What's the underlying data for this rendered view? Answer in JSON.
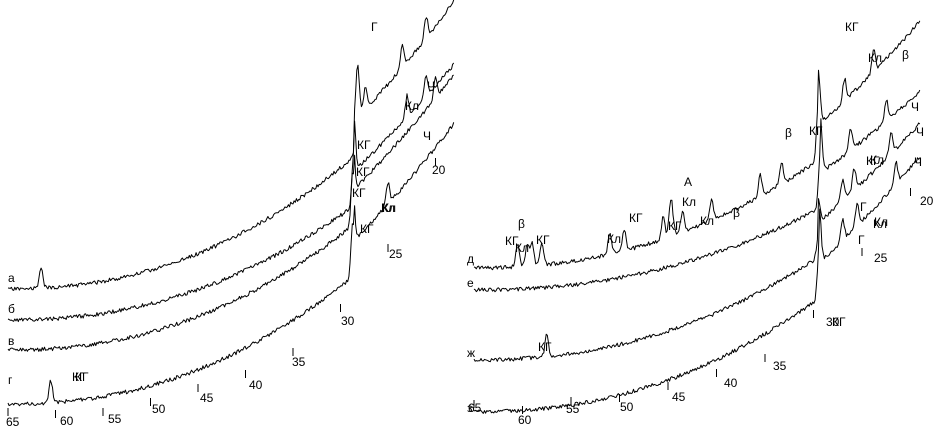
{
  "chart_data": [
    {
      "type": "line",
      "panel": "left",
      "xlim": [
        65,
        18
      ],
      "ticks": [
        {
          "label": "65",
          "x": 65
        },
        {
          "label": "60",
          "x": 60
        },
        {
          "label": "55",
          "x": 55
        },
        {
          "label": "50",
          "x": 50
        },
        {
          "label": "45",
          "x": 45
        },
        {
          "label": "40",
          "x": 40
        },
        {
          "label": "35",
          "x": 35
        },
        {
          "label": "30",
          "x": 30
        },
        {
          "label": "25",
          "x": 25
        },
        {
          "label": "20",
          "x": 20
        }
      ],
      "series": [
        {
          "name": "а",
          "peaks": [
            {
              "x": 61.5,
              "label": "КГ"
            },
            {
              "x": 28.2,
              "label": "КГ"
            },
            {
              "x": 27.4,
              "label": "Г"
            },
            {
              "x": 23.5,
              "label": "Кл"
            },
            {
              "x": 21.0,
              "label": "Ч"
            }
          ]
        },
        {
          "name": "б",
          "peaks": [
            {
              "x": 28.6,
              "label": "КГ"
            },
            {
              "x": 23.0,
              "label": "Кл"
            },
            {
              "x": 21.0,
              "label": "Ч"
            }
          ]
        },
        {
          "name": "в",
          "peaks": [
            {
              "x": 28.7,
              "label": "КГ"
            },
            {
              "x": 20.0,
              "label": ""
            }
          ]
        },
        {
          "name": "г",
          "peaks": [
            {
              "x": 60.5,
              "label": "КГ"
            },
            {
              "x": 28.7,
              "label": "КГ"
            },
            {
              "x": 25.0,
              "label": "Кл"
            }
          ]
        }
      ]
    },
    {
      "type": "line",
      "panel": "right",
      "xlim": [
        65,
        19
      ],
      "ticks": [
        {
          "label": "65",
          "x": 65
        },
        {
          "label": "60",
          "x": 60
        },
        {
          "label": "55",
          "x": 55
        },
        {
          "label": "50",
          "x": 50
        },
        {
          "label": "45",
          "x": 45
        },
        {
          "label": "40",
          "x": 40
        },
        {
          "label": "35",
          "x": 35
        },
        {
          "label": "30",
          "x": 30
        },
        {
          "label": "25",
          "x": 25
        },
        {
          "label": "20",
          "x": 20
        }
      ],
      "series": [
        {
          "name": "д",
          "peaks": [
            {
              "x": 60.5,
              "label": "КГ"
            },
            {
              "x": 59.5,
              "label": "Кл"
            },
            {
              "x": 59.0,
              "label": "β"
            },
            {
              "x": 58.0,
              "label": "КГ"
            },
            {
              "x": 51.0,
              "label": "Кл"
            },
            {
              "x": 49.5,
              "label": "КГ"
            },
            {
              "x": 45.5,
              "label": "КГ"
            },
            {
              "x": 44.8,
              "label": "Кл"
            },
            {
              "x": 44.6,
              "label": "А"
            },
            {
              "x": 43.5,
              "label": "Кл"
            },
            {
              "x": 40.5,
              "label": "β"
            },
            {
              "x": 35.5,
              "label": "β"
            },
            {
              "x": 33.3,
              "label": "КГ"
            },
            {
              "x": 29.5,
              "label": "КГ"
            },
            {
              "x": 26.8,
              "label": "Кл"
            },
            {
              "x": 23.8,
              "label": "β"
            }
          ]
        },
        {
          "name": "е",
          "peaks": [
            {
              "x": 29.3,
              "label": "КГ"
            },
            {
              "x": 26.2,
              "label": "Кл"
            },
            {
              "x": 22.5,
              "label": "Ч"
            }
          ]
        },
        {
          "name": "ж",
          "peaks": [
            {
              "x": 57.5,
              "label": "КГ"
            },
            {
              "x": 29.5,
              "label": ""
            },
            {
              "x": 27.0,
              "label": "Г"
            },
            {
              "x": 25.8,
              "label": "Кл"
            },
            {
              "x": 22.0,
              "label": "Ч"
            }
          ]
        },
        {
          "name": "з",
          "peaks": [
            {
              "x": 29.4,
              "label": "КГ"
            },
            {
              "x": 27.0,
              "label": "Г"
            },
            {
              "x": 25.5,
              "label": "Кл"
            },
            {
              "x": 21.5,
              "label": "Ч"
            }
          ]
        }
      ]
    }
  ]
}
